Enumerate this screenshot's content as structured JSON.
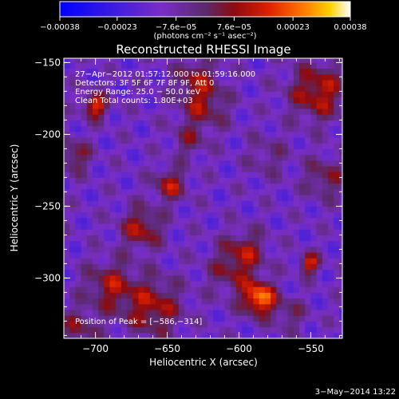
{
  "chart_data": {
    "type": "heatmap",
    "title": "Reconstructed RHESSI Image",
    "xlabel": "Heliocentric X (arcsec)",
    "ylabel": "Heliocentric Y (arcsec)",
    "xlim": [
      -722,
      -528
    ],
    "ylim": [
      -342,
      -147
    ],
    "x_ticks": [
      -700,
      -650,
      -600,
      -550
    ],
    "y_ticks": [
      -150,
      -200,
      -250,
      -300
    ],
    "x_tick_labels": [
      "−700",
      "−650",
      "−600",
      "−550"
    ],
    "y_tick_labels": [
      "−150",
      "−200",
      "−250",
      "−300"
    ],
    "colorbar": {
      "min": -0.00038,
      "max": 0.00038,
      "ticks": [
        -0.00038,
        -0.00023,
        -7.6e-05,
        7.6e-05,
        0.00023,
        0.00038
      ],
      "tick_labels": [
        "−0.00038",
        "−0.00023",
        "−7.6e−05",
        "7.6e−05",
        "0.00023",
        "0.00038"
      ],
      "units": "(photons cm⁻² s⁻¹ asec⁻²)"
    },
    "annotations": [
      "27−Apr−2012 01:57:12.000 to 01:59:16.000",
      "Detectors: 3F 5F 6F 7F 8F 9F, Att 0",
      "Energy Range: 25.0 − 50.0 keV",
      "Clean    Total counts: 1.80E+03"
    ],
    "peak_label": "Position of Peak = [−586,−314]",
    "peak": [
      -586,
      -314
    ],
    "sources": [
      {
        "x": -586,
        "y": -314,
        "amp": 0.00038,
        "sigma": 8
      },
      {
        "x": -700,
        "y": -180,
        "amp": 0.0003,
        "sigma": 6
      },
      {
        "x": -551,
        "y": -290,
        "amp": 0.00028,
        "sigma": 5
      },
      {
        "x": -668,
        "y": -265,
        "amp": 0.00022,
        "sigma": 10
      },
      {
        "x": -648,
        "y": -235,
        "amp": 0.00022,
        "sigma": 8
      },
      {
        "x": -690,
        "y": -305,
        "amp": 0.0002,
        "sigma": 12
      },
      {
        "x": -660,
        "y": -320,
        "amp": 0.00022,
        "sigma": 14
      },
      {
        "x": -625,
        "y": -180,
        "amp": 0.00018,
        "sigma": 12
      },
      {
        "x": -630,
        "y": -160,
        "amp": 0.00016,
        "sigma": 10
      },
      {
        "x": -545,
        "y": -170,
        "amp": 0.00024,
        "sigma": 14
      },
      {
        "x": -540,
        "y": -230,
        "amp": 0.00016,
        "sigma": 10
      },
      {
        "x": -595,
        "y": -280,
        "amp": 0.00016,
        "sigma": 10
      },
      {
        "x": -605,
        "y": -295,
        "amp": 0.00015,
        "sigma": 12
      },
      {
        "x": -715,
        "y": -215,
        "amp": 0.00018,
        "sigma": 8
      },
      {
        "x": -712,
        "y": -335,
        "amp": 0.00015,
        "sigma": 10
      },
      {
        "x": -565,
        "y": -325,
        "amp": 0.00012,
        "sigma": 8
      },
      {
        "x": -580,
        "y": -215,
        "amp": 0.0001,
        "sigma": 10
      },
      {
        "x": -635,
        "y": -205,
        "amp": 0.00012,
        "sigma": 8
      }
    ]
  },
  "footer": {
    "date": "3−May−2014 13:22"
  }
}
